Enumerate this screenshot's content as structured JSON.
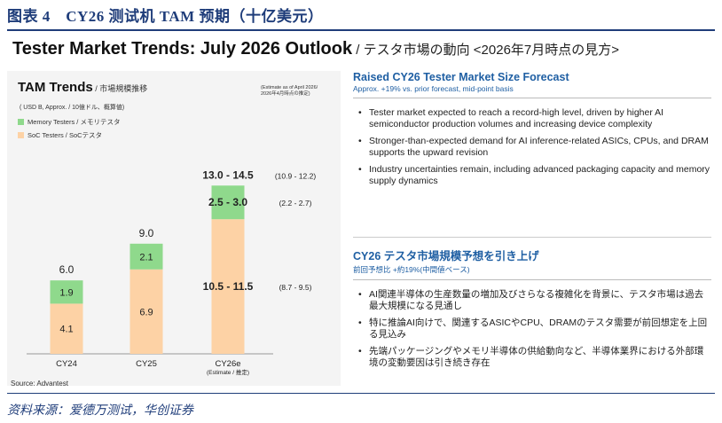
{
  "figure_title": "图表 4　CY26 测试机 TAM 预期（十亿美元）",
  "main_title_en": "Tester Market Trends: July 2026 Outlook",
  "main_title_jp": " / テスタ市場の動向 <2026年7月時点の見方>",
  "chart_title_en": "TAM Trends",
  "chart_title_jp": " / 市場規模推移",
  "unit_label": "( USD B, Approx. / 10億ドル、概算値)",
  "estimate_note_line1": "(Estimate as of April 2026/",
  "estimate_note_line2": "2026年4月時点の推定)",
  "source": "Source: Advantest",
  "footer": "资料来源：爱德万测试，华创证券",
  "colors": {
    "memory": "#8fd98c",
    "soc": "#fdd2a5",
    "accent": "#1f5fa3",
    "brand": "#1f3d7a"
  },
  "chart_data": {
    "type": "bar",
    "stacked": true,
    "categories": [
      "CY24",
      "CY25",
      "CY26e"
    ],
    "category_sublabels": [
      "",
      "",
      "(Estimate / 推定)"
    ],
    "series": [
      {
        "name": "SoC Testers / SoCテスタ",
        "values": [
          4.1,
          6.9,
          11.0
        ],
        "labels": [
          "4.1",
          "6.9",
          "10.5 - 11.5"
        ]
      },
      {
        "name": "Memory Testers / メモリテスタ",
        "values": [
          1.9,
          2.1,
          2.75
        ],
        "labels": [
          "1.9",
          "2.1",
          "2.5 - 3.0"
        ]
      }
    ],
    "totals": [
      "6.0",
      "9.0",
      "13.0 - 14.5"
    ],
    "prior_estimates": {
      "total": "(10.9 - 12.2)",
      "memory": "(2.2 - 2.7)",
      "soc": "(8.7 - 9.5)"
    },
    "ylim": [
      0,
      15
    ],
    "legend": [
      "Memory Testers / メモリテスタ",
      "SoC Testers / SoCテスタ"
    ]
  },
  "section_en": {
    "heading": "Raised CY26 Tester Market Size Forecast",
    "sub": "Approx. +19% vs. prior forecast, mid-point basis",
    "bullets": [
      "Tester market expected to reach a record-high level, driven by higher AI semiconductor production volumes and increasing device complexity",
      "Stronger-than-expected demand for AI inference-related ASICs, CPUs, and DRAM supports the upward revision",
      "Industry uncertainties remain, including advanced packaging capacity and memory supply dynamics"
    ]
  },
  "section_jp": {
    "heading": "CY26 テスタ市場規模予想を引き上げ",
    "sub": "前回予想比 +約19%(中間値ベース)",
    "bullets": [
      "AI関連半導体の生産数量の増加及びさらなる複雑化を背景に、テスタ市場は過去最大規模になる見通し",
      "特に推論AI向けで、関連するASICやCPU、DRAMのテスタ需要が前回想定を上回る見込み",
      "先端パッケージングやメモリ半導体の供給動向など、半導体業界における外部環境の変動要因は引き続き存在"
    ]
  }
}
